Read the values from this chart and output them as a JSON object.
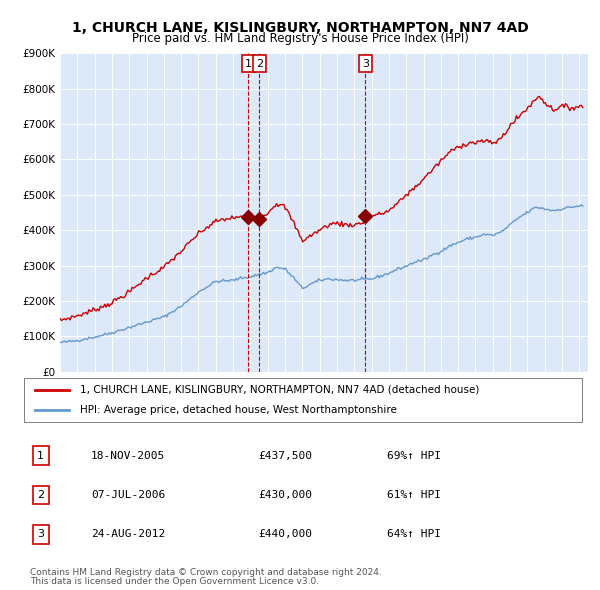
{
  "title_line1": "1, CHURCH LANE, KISLINGBURY, NORTHAMPTON, NN7 4AD",
  "title_line2": "Price paid vs. HM Land Registry's House Price Index (HPI)",
  "legend_line1": "1, CHURCH LANE, KISLINGBURY, NORTHAMPTON, NN7 4AD (detached house)",
  "legend_line2": "HPI: Average price, detached house, West Northamptonshire",
  "transactions": [
    {
      "num": 1,
      "date": "18-NOV-2005",
      "date_val": 2005.88,
      "price": 437500,
      "pct": "69%↑ HPI"
    },
    {
      "num": 2,
      "date": "07-JUL-2006",
      "date_val": 2006.52,
      "price": 430000,
      "pct": "61%↑ HPI"
    },
    {
      "num": 3,
      "date": "24-AUG-2012",
      "date_val": 2012.64,
      "price": 440000,
      "pct": "64%↑ HPI"
    }
  ],
  "background_color": "#dde8f8",
  "plot_bg_color": "#dde8f8",
  "hpi_line_color": "#6699cc",
  "price_line_color": "#cc0000",
  "transaction_marker_color": "#880000",
  "vline_color": "#cc0000",
  "footnote_line1": "Contains HM Land Registry data © Crown copyright and database right 2024.",
  "footnote_line2": "This data is licensed under the Open Government Licence v3.0.",
  "ylim": [
    0,
    900000
  ],
  "yticks": [
    0,
    100000,
    200000,
    300000,
    400000,
    500000,
    600000,
    700000,
    800000,
    900000
  ],
  "xlim_start": 1995.0,
  "xlim_end": 2025.5
}
